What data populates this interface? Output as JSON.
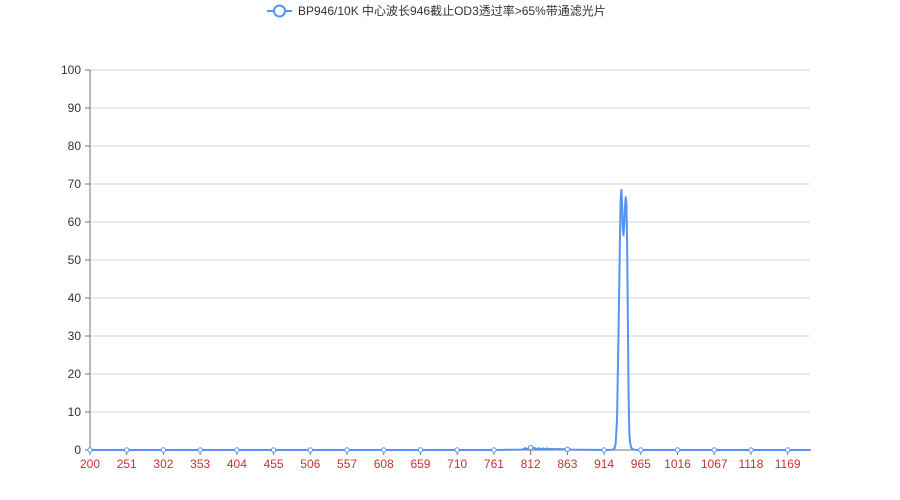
{
  "chart_data": {
    "type": "line",
    "title": "",
    "xlabel": "",
    "ylabel": "",
    "legend": {
      "position": "top-center"
    },
    "x_tick_labels": [
      "200",
      "251",
      "302",
      "353",
      "404",
      "455",
      "506",
      "557",
      "608",
      "659",
      "710",
      "761",
      "812",
      "863",
      "914",
      "965",
      "1016",
      "1067",
      "1118",
      "1169"
    ],
    "y_tick_labels": [
      "0",
      "10",
      "20",
      "30",
      "40",
      "50",
      "60",
      "70",
      "80",
      "90",
      "100"
    ],
    "xlim": [
      200,
      1200
    ],
    "ylim": [
      0,
      100
    ],
    "grid": true,
    "series": [
      {
        "name": "BP946/10K 中心波长946截止OD3透过率>65%带通滤光片",
        "color": "#5793f3",
        "marker": "circle",
        "points": [
          [
            200,
            0.0
          ],
          [
            251,
            0.0
          ],
          [
            302,
            0.0
          ],
          [
            353,
            0.0
          ],
          [
            404,
            0.0
          ],
          [
            455,
            0.0
          ],
          [
            506,
            0.0
          ],
          [
            557,
            0.0
          ],
          [
            608,
            0.0
          ],
          [
            659,
            0.0
          ],
          [
            710,
            0.0
          ],
          [
            761,
            0.0
          ],
          [
            800,
            0.1
          ],
          [
            805,
            0.5
          ],
          [
            808,
            0.2
          ],
          [
            811,
            0.8
          ],
          [
            814,
            0.3
          ],
          [
            817,
            0.6
          ],
          [
            820,
            0.2
          ],
          [
            823,
            0.5
          ],
          [
            826,
            0.2
          ],
          [
            829,
            0.4
          ],
          [
            832,
            0.2
          ],
          [
            835,
            0.4
          ],
          [
            838,
            0.2
          ],
          [
            842,
            0.3
          ],
          [
            846,
            0.2
          ],
          [
            850,
            0.3
          ],
          [
            855,
            0.2
          ],
          [
            860,
            0.2
          ],
          [
            865,
            0.15
          ],
          [
            870,
            0.1
          ],
          [
            880,
            0.05
          ],
          [
            900,
            0.02
          ],
          [
            914,
            0.0
          ],
          [
            920,
            0.0
          ],
          [
            925,
            0.05
          ],
          [
            928,
            0.2
          ],
          [
            930,
            1.5
          ],
          [
            932,
            8
          ],
          [
            934,
            30
          ],
          [
            936,
            55
          ],
          [
            937,
            66
          ],
          [
            938,
            68.5
          ],
          [
            939,
            65
          ],
          [
            940,
            58
          ],
          [
            941,
            56.5
          ],
          [
            942,
            59
          ],
          [
            943,
            64
          ],
          [
            944,
            66.5
          ],
          [
            945,
            65
          ],
          [
            946,
            55
          ],
          [
            947,
            35
          ],
          [
            948,
            15
          ],
          [
            949,
            5
          ],
          [
            950,
            2
          ],
          [
            952,
            0.5
          ],
          [
            955,
            0.1
          ],
          [
            960,
            0.0
          ],
          [
            965,
            0.0
          ],
          [
            1016,
            0.0
          ],
          [
            1067,
            0.0
          ],
          [
            1118,
            0.0
          ],
          [
            1169,
            0.0
          ],
          [
            1200,
            0.0
          ]
        ]
      }
    ],
    "colors": {
      "x_tick_label": "#c23531",
      "zero_line_accent": "#c23531"
    }
  }
}
